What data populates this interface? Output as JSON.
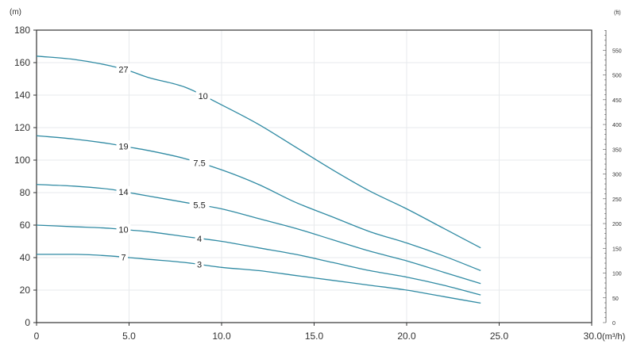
{
  "chart_data": {
    "type": "line",
    "y_unit_left": "(m)",
    "y_unit_right": "(ft)",
    "x_unit": "(m³/h)",
    "xlim": [
      0,
      30
    ],
    "ylim": [
      0,
      180
    ],
    "x_ticks": [
      "0",
      "5.0",
      "10.0",
      "15.0",
      "20.0",
      "25.0",
      "30.0"
    ],
    "y_ticks": [
      "0",
      "20",
      "40",
      "60",
      "80",
      "100",
      "120",
      "140",
      "160",
      "180"
    ],
    "y_right_ticks": [
      "0",
      "50",
      "100",
      "150",
      "200",
      "250",
      "300",
      "350",
      "400",
      "450",
      "500",
      "550"
    ],
    "grid": true,
    "colors": {
      "curve": "#2f8aa3",
      "axis": "#333333",
      "grid": "#e7eaec"
    },
    "series": [
      {
        "x": [
          0,
          2,
          4,
          5,
          6,
          8,
          10,
          12,
          14,
          16,
          18,
          20,
          22,
          24
        ],
        "y": [
          164,
          162,
          158,
          155,
          151,
          145,
          134,
          122,
          108,
          94,
          81,
          70,
          58,
          46
        ],
        "labels": [
          {
            "text": "27",
            "x": 4.7
          },
          {
            "text": "10",
            "x": 9.0
          }
        ]
      },
      {
        "x": [
          0,
          2,
          4,
          5,
          6,
          8,
          10,
          12,
          14,
          16,
          18,
          20,
          22,
          24
        ],
        "y": [
          115,
          113,
          110,
          108,
          106,
          101,
          94,
          85,
          74,
          65,
          56,
          49,
          41,
          32
        ],
        "labels": [
          {
            "text": "19",
            "x": 4.7
          },
          {
            "text": "7.5",
            "x": 8.8
          }
        ]
      },
      {
        "x": [
          0,
          2,
          4,
          5,
          6,
          8,
          10,
          12,
          14,
          16,
          18,
          20,
          22,
          24
        ],
        "y": [
          85,
          84,
          82,
          80,
          78,
          74,
          70,
          64,
          58,
          51,
          44,
          38,
          31,
          24
        ],
        "labels": [
          {
            "text": "14",
            "x": 4.7
          },
          {
            "text": "5.5",
            "x": 8.8
          }
        ]
      },
      {
        "x": [
          0,
          2,
          4,
          5,
          6,
          8,
          10,
          12,
          14,
          16,
          18,
          20,
          22,
          24
        ],
        "y": [
          60,
          59,
          58,
          57,
          56,
          53,
          50,
          46,
          42,
          37,
          32,
          28,
          23,
          17
        ],
        "labels": [
          {
            "text": "10",
            "x": 4.7
          },
          {
            "text": "4",
            "x": 8.8
          }
        ]
      },
      {
        "x": [
          0,
          2,
          4,
          5,
          6,
          8,
          10,
          12,
          14,
          16,
          18,
          20,
          22,
          24
        ],
        "y": [
          42,
          42,
          41,
          40,
          39,
          37,
          34,
          32,
          29,
          26,
          23,
          20,
          16,
          12
        ],
        "labels": [
          {
            "text": "7",
            "x": 4.7
          },
          {
            "text": "3",
            "x": 8.8
          }
        ]
      }
    ]
  }
}
